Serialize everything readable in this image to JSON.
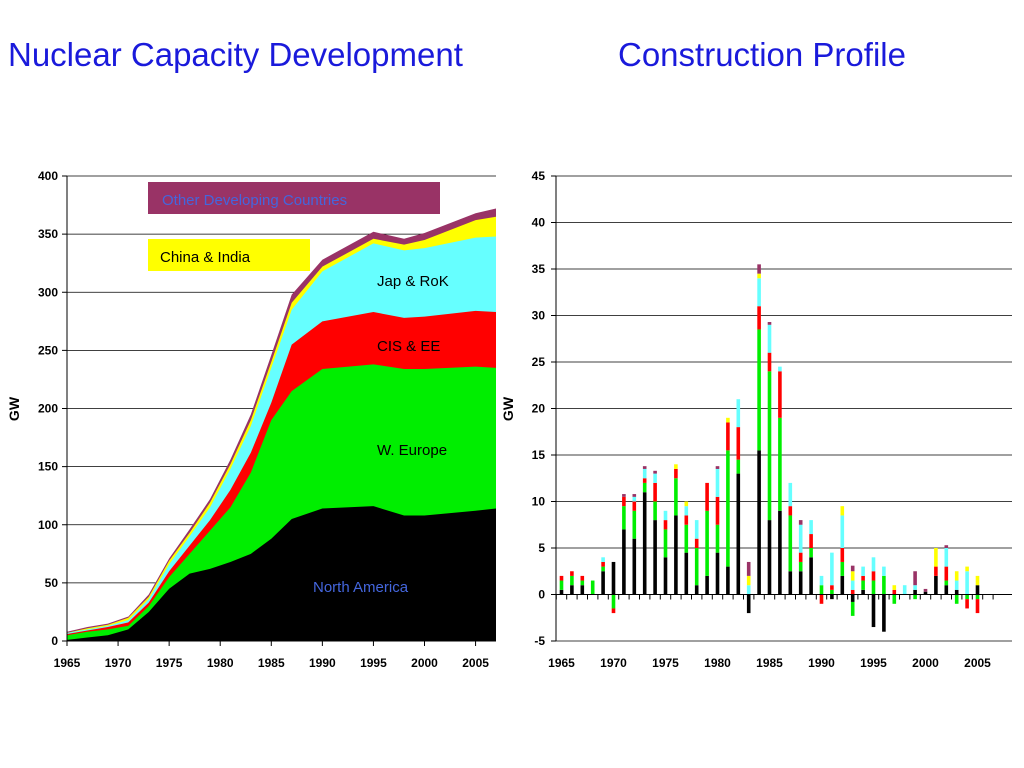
{
  "slide": {
    "title_left": "Nuclear Capacity Development",
    "title_right": "Construction Profile"
  },
  "colors": {
    "north_america": "#000000",
    "w_europe": "#00ee00",
    "cis_ee": "#ff0000",
    "jap_rok": "#66ffff",
    "china_india": "#ffff00",
    "other_developing": "#993366",
    "legend_blue_text": "#4466dd"
  },
  "chart_data": [
    {
      "type": "area",
      "stacked": true,
      "title": "Nuclear Capacity Development",
      "ylabel": "GW",
      "xlabel": "",
      "xlim": [
        1965,
        2007
      ],
      "ylim": [
        0,
        400
      ],
      "x_ticks": [
        1965,
        1970,
        1975,
        1980,
        1985,
        1990,
        1995,
        2000,
        2005
      ],
      "y_ticks": [
        0,
        50,
        100,
        150,
        200,
        250,
        300,
        350,
        400
      ],
      "grid": "horizontal",
      "annotations": {
        "other_developing": "Other Developing Countries",
        "china_india": "China & India",
        "jap_rok": "Jap & RoK",
        "cis_ee": "CIS & EE",
        "w_europe": "W. Europe",
        "north_america": "North America"
      },
      "x": [
        1965,
        1967,
        1969,
        1971,
        1973,
        1975,
        1977,
        1979,
        1981,
        1983,
        1985,
        1987,
        1990,
        1995,
        1998,
        2000,
        2005,
        2007
      ],
      "cumulative_top": {
        "north_america": [
          1,
          3,
          5,
          10,
          25,
          45,
          58,
          62,
          68,
          75,
          88,
          105,
          114,
          116,
          108,
          108,
          112,
          114
        ],
        "w_europe": [
          5,
          8,
          10,
          13,
          30,
          55,
          75,
          95,
          115,
          145,
          190,
          215,
          234,
          238,
          234,
          234,
          236,
          235
        ],
        "cis_ee": [
          6,
          9,
          12,
          16,
          33,
          60,
          82,
          104,
          130,
          162,
          205,
          255,
          275,
          283,
          278,
          279,
          284,
          283
        ],
        "jap_rok": [
          7,
          10,
          13,
          18,
          36,
          66,
          90,
          115,
          148,
          185,
          235,
          285,
          318,
          342,
          336,
          338,
          347,
          348
        ],
        "china_india": [
          7,
          11,
          14,
          20,
          38,
          69,
          93,
          119,
          152,
          190,
          240,
          291,
          322,
          346,
          341,
          345,
          362,
          365
        ],
        "other_developing": [
          8,
          12,
          15,
          21,
          40,
          71,
          96,
          122,
          156,
          195,
          246,
          298,
          328,
          352,
          346,
          351,
          368,
          372
        ]
      }
    },
    {
      "type": "bar",
      "stacked": true,
      "title": "Construction Profile",
      "ylabel": "GW",
      "xlabel": "",
      "xlim": [
        1965,
        2007
      ],
      "ylim": [
        -5,
        45
      ],
      "x_ticks": [
        1965,
        1970,
        1975,
        1980,
        1985,
        1990,
        1995,
        2000,
        2005
      ],
      "y_ticks": [
        -5,
        0,
        5,
        10,
        15,
        20,
        25,
        30,
        35,
        40,
        45
      ],
      "grid": "horizontal",
      "series": [
        {
          "key": "north_america",
          "values": [
            0.5,
            1,
            1,
            0,
            2.5,
            3.5,
            7,
            6,
            11,
            8,
            4,
            8.5,
            4.5,
            1,
            2,
            4.5,
            3,
            13,
            -2,
            15.5,
            8,
            9,
            2.5,
            2.5,
            4,
            0,
            -0.5,
            2,
            -0.8,
            0.5,
            -3.5,
            -4,
            0,
            0,
            0.5,
            0.3,
            2,
            1,
            0.5,
            0,
            1
          ]
        },
        {
          "key": "w_europe",
          "values": [
            1,
            1,
            0.5,
            1.5,
            0.5,
            -1.5,
            2.5,
            3,
            1,
            2,
            3,
            4,
            3,
            4,
            7,
            3,
            12.5,
            1.5,
            0,
            13,
            16,
            10,
            6,
            1,
            1,
            1,
            0.5,
            1.5,
            -1.5,
            1,
            1.5,
            2,
            -1,
            0,
            -0.5,
            0,
            0,
            0.5,
            -1,
            -0.5,
            -0.5
          ]
        },
        {
          "key": "cis_ee",
          "values": [
            0.5,
            0.5,
            0.5,
            0,
            0.5,
            -0.5,
            1,
            1,
            0.5,
            2,
            1,
            1,
            1,
            1,
            3,
            3,
            3,
            3.5,
            0,
            2.5,
            2,
            5,
            1,
            1,
            1.5,
            -1,
            0.5,
            1.5,
            0.5,
            0.5,
            1,
            0,
            0.5,
            0,
            0,
            0,
            1,
            1.5,
            0,
            -1,
            -1.5
          ]
        },
        {
          "key": "jap_rok",
          "values": [
            0,
            0,
            0,
            0,
            0.5,
            0,
            0,
            0.5,
            1,
            1,
            1,
            0,
            1,
            2,
            0,
            3,
            0,
            3,
            1,
            3,
            3,
            0.5,
            2.5,
            3,
            1.5,
            1,
            3.5,
            3.5,
            1,
            1,
            1.5,
            1,
            0,
            1,
            0.5,
            0,
            0,
            2,
            1,
            2.5,
            0
          ]
        },
        {
          "key": "china_india",
          "values": [
            0,
            0,
            0,
            0,
            0,
            0,
            0,
            0,
            0,
            0,
            0,
            0.5,
            0.5,
            0,
            0,
            0,
            0.5,
            0,
            1,
            0.5,
            0,
            0,
            0,
            0,
            0,
            0,
            0,
            1,
            1,
            0,
            0,
            0,
            0.5,
            0,
            0,
            0,
            2,
            0,
            1,
            0.5,
            1
          ]
        },
        {
          "key": "other_developing",
          "values": [
            0,
            0,
            0,
            0,
            0,
            0,
            0.3,
            0.3,
            0.3,
            0.3,
            0,
            0,
            0,
            0,
            0,
            0.3,
            0,
            0,
            1.5,
            1,
            0.3,
            0,
            0,
            0.5,
            0,
            0,
            0,
            0,
            0.6,
            0,
            0,
            0,
            0,
            0,
            1.5,
            0.3,
            0,
            0.3,
            0,
            0,
            0
          ]
        }
      ]
    }
  ]
}
